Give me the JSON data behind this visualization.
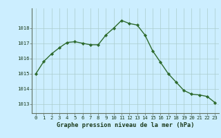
{
  "hours": [
    0,
    1,
    2,
    3,
    4,
    5,
    6,
    7,
    8,
    9,
    10,
    11,
    12,
    13,
    14,
    15,
    16,
    17,
    18,
    19,
    20,
    21,
    22,
    23
  ],
  "pressure": [
    1015.0,
    1015.8,
    1016.3,
    1016.7,
    1017.05,
    1017.1,
    1017.0,
    1016.9,
    1016.9,
    1017.55,
    1018.0,
    1018.5,
    1018.3,
    1018.2,
    1017.55,
    1016.5,
    1015.75,
    1015.0,
    1014.45,
    1013.9,
    1013.65,
    1013.6,
    1013.5,
    1013.1
  ],
  "line_color": "#2d6a2d",
  "marker_color": "#2d6a2d",
  "bg_color": "#cceeff",
  "grid_color": "#aacccc",
  "xlabel": "Graphe pression niveau de la mer (hPa)",
  "xlabel_color": "#1a3a1a",
  "tick_color": "#1a3a1a",
  "ylim": [
    1012.4,
    1019.3
  ],
  "yticks": [
    1013,
    1014,
    1015,
    1016,
    1017,
    1018
  ],
  "xticks": [
    0,
    1,
    2,
    3,
    4,
    5,
    6,
    7,
    8,
    9,
    10,
    11,
    12,
    13,
    14,
    15,
    16,
    17,
    18,
    19,
    20,
    21,
    22,
    23
  ],
  "tick_fontsize": 5.2,
  "label_fontsize": 6.2,
  "linewidth": 1.0,
  "markersize": 2.2
}
